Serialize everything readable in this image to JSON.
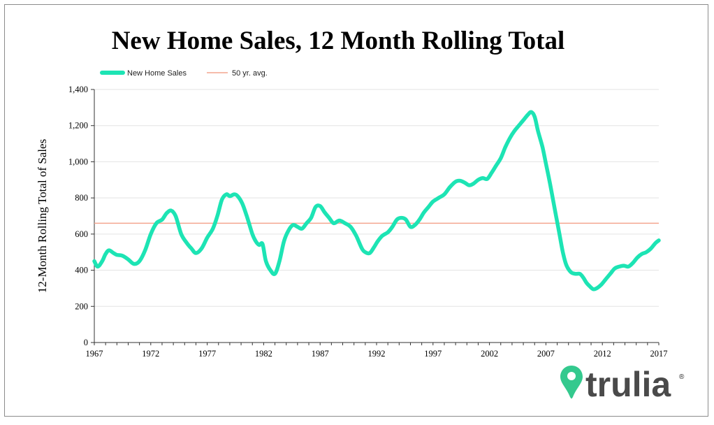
{
  "chart_data": {
    "type": "line",
    "title": "New Home Sales, 12 Month Rolling Total",
    "ylabel": "12-Month Rolling Total of Sales",
    "xlabel": "",
    "xlim": [
      1967,
      2017
    ],
    "ylim": [
      0,
      1400
    ],
    "y_ticks": [
      0,
      200,
      400,
      600,
      800,
      1000,
      1200,
      1400
    ],
    "y_tick_labels": [
      "0",
      "200",
      "400",
      "600",
      "800",
      "1,000",
      "1,200",
      "1,400"
    ],
    "x_ticks": [
      1967,
      1972,
      1977,
      1982,
      1987,
      1992,
      1997,
      2002,
      2007,
      2012,
      2017
    ],
    "x_tick_labels": [
      "1967",
      "1972",
      "1977",
      "1982",
      "1987",
      "1992",
      "1997",
      "2002",
      "2007",
      "2012",
      "2017"
    ],
    "grid": "horizontal",
    "legend_position": "top-left",
    "series": [
      {
        "name": "New Home Sales",
        "color": "#1de4b4",
        "x": [
          1967.0,
          1967.3,
          1967.7,
          1968.0,
          1968.3,
          1968.7,
          1969.0,
          1969.5,
          1970.0,
          1970.5,
          1971.0,
          1971.5,
          1972.0,
          1972.5,
          1973.0,
          1973.4,
          1973.8,
          1974.2,
          1974.7,
          1975.2,
          1975.6,
          1976.0,
          1976.5,
          1977.0,
          1977.5,
          1977.9,
          1978.3,
          1978.7,
          1979.0,
          1979.4,
          1979.7,
          1980.1,
          1980.5,
          1981.0,
          1981.3,
          1981.6,
          1981.9,
          1982.2,
          1982.6,
          1983.0,
          1983.4,
          1983.8,
          1984.2,
          1984.6,
          1985.0,
          1985.4,
          1985.8,
          1986.2,
          1986.6,
          1987.0,
          1987.4,
          1987.8,
          1988.2,
          1988.7,
          1989.2,
          1989.7,
          1990.2,
          1990.7,
          1991.0,
          1991.4,
          1991.8,
          1992.1,
          1992.5,
          1993.0,
          1993.4,
          1993.8,
          1994.2,
          1994.6,
          1995.0,
          1995.4,
          1995.8,
          1996.2,
          1996.6,
          1997.0,
          1997.5,
          1998.0,
          1998.5,
          1999.0,
          1999.4,
          1999.8,
          2000.2,
          2000.6,
          2001.0,
          2001.4,
          2001.8,
          2002.2,
          2002.6,
          2003.0,
          2003.4,
          2003.8,
          2004.2,
          2004.6,
          2005.0,
          2005.4,
          2005.7,
          2006.0,
          2006.3,
          2006.7,
          2007.0,
          2007.3,
          2007.6,
          2007.9,
          2008.2,
          2008.5,
          2008.8,
          2009.2,
          2009.6,
          2010.0,
          2010.3,
          2010.6,
          2010.9,
          2011.2,
          2011.5,
          2011.9,
          2012.3,
          2012.7,
          2013.1,
          2013.5,
          2013.9,
          2014.3,
          2014.7,
          2015.1,
          2015.5,
          2015.9,
          2016.3,
          2016.7,
          2017.0
        ],
        "values": [
          450,
          420,
          450,
          490,
          510,
          495,
          485,
          480,
          460,
          435,
          450,
          510,
          600,
          660,
          680,
          715,
          730,
          700,
          600,
          550,
          520,
          495,
          520,
          580,
          630,
          700,
          790,
          820,
          810,
          820,
          810,
          770,
          700,
          600,
          560,
          540,
          545,
          450,
          400,
          380,
          450,
          560,
          620,
          650,
          640,
          630,
          660,
          690,
          750,
          755,
          720,
          690,
          660,
          675,
          660,
          640,
          590,
          520,
          500,
          495,
          530,
          560,
          590,
          610,
          640,
          680,
          690,
          680,
          640,
          650,
          680,
          720,
          750,
          780,
          800,
          820,
          860,
          890,
          895,
          885,
          870,
          880,
          900,
          910,
          905,
          940,
          980,
          1020,
          1080,
          1130,
          1170,
          1200,
          1230,
          1260,
          1275,
          1250,
          1170,
          1080,
          990,
          900,
          800,
          700,
          600,
          500,
          430,
          390,
          380,
          380,
          360,
          330,
          310,
          295,
          300,
          320,
          350,
          380,
          410,
          420,
          425,
          420,
          440,
          470,
          490,
          500,
          520,
          550,
          565
        ]
      },
      {
        "name": "50 yr. avg.",
        "color": "#f4a58f",
        "x": [
          1967,
          2017
        ],
        "values": [
          660,
          660
        ]
      }
    ]
  },
  "logo": {
    "text": "trulia",
    "mark": "®",
    "pin_color": "#34c98e",
    "text_color": "#4a4a4a"
  }
}
